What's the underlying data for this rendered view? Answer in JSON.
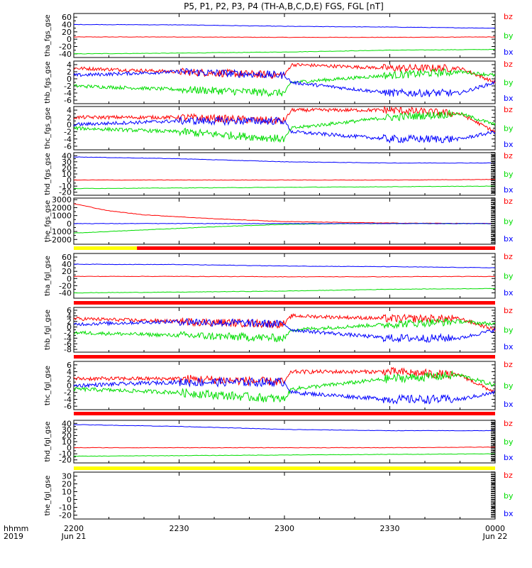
{
  "title": "P5, P1, P2, P3, P4 (TH-A,B,C,D,E) FGS, FGL [nT]",
  "time_axis": {
    "label_line1": "hhmm",
    "label_line2": "2019",
    "ticks": [
      {
        "t": 0,
        "label": "2200",
        "sub": "Jun 21"
      },
      {
        "t": 30,
        "label": "2230",
        "sub": ""
      },
      {
        "t": 60,
        "label": "2300",
        "sub": ""
      },
      {
        "t": 90,
        "label": "2330",
        "sub": ""
      },
      {
        "t": 120,
        "label": "0000",
        "sub": "Jun 22"
      }
    ],
    "range_minutes": [
      0,
      120
    ]
  },
  "colors": {
    "bx": "#0000ff",
    "by": "#00dd00",
    "bz": "#ff0000",
    "yellow": "#ffff00",
    "red_bar": "#ff0000"
  },
  "chart_data": [
    {
      "type": "line",
      "ylabel": "tha_fgs_gse",
      "ylim": [
        -50,
        70
      ],
      "yticks": [
        "60",
        "40",
        "20",
        "0",
        "-20",
        "-40"
      ],
      "ytick_values": [
        60,
        40,
        20,
        0,
        -20,
        -40
      ],
      "legend": [
        "bz",
        "by",
        "bx"
      ],
      "series": [
        {
          "name": "bz",
          "x": [
            0,
            30,
            60,
            90,
            120
          ],
          "values": [
            6,
            6,
            5,
            5,
            6
          ]
        },
        {
          "name": "by",
          "x": [
            0,
            30,
            60,
            90,
            120
          ],
          "values": [
            -40,
            -38,
            -35,
            -30,
            -28
          ]
        },
        {
          "name": "bx",
          "x": [
            0,
            30,
            60,
            90,
            120
          ],
          "values": [
            40,
            39,
            35,
            33,
            30
          ]
        }
      ],
      "bar": null
    },
    {
      "type": "line",
      "ylabel": "thb_fgs_gse",
      "ylim": [
        -7,
        5
      ],
      "yticks": [
        "4",
        "2",
        "0",
        "-2",
        "-4",
        "-6"
      ],
      "ytick_values": [
        4,
        2,
        0,
        -2,
        -4,
        -6
      ],
      "legend": [
        "bz",
        "by",
        "bx"
      ],
      "series": [
        {
          "name": "bz",
          "x": [
            0,
            30,
            60,
            62,
            90,
            110,
            120
          ],
          "values": [
            3,
            2,
            1,
            4,
            3,
            3,
            -1
          ]
        },
        {
          "name": "by",
          "x": [
            0,
            30,
            60,
            62,
            90,
            110,
            120
          ],
          "values": [
            -2,
            -3,
            -4,
            -1,
            1,
            2,
            1
          ]
        },
        {
          "name": "bx",
          "x": [
            0,
            30,
            60,
            62,
            90,
            110,
            120
          ],
          "values": [
            1,
            2,
            1,
            -1,
            -4,
            -4,
            -1
          ]
        }
      ],
      "bar": null
    },
    {
      "type": "line",
      "ylabel": "thc_fgs_gse",
      "ylim": [
        -7,
        5
      ],
      "yticks": [
        "4",
        "2",
        "0",
        "-2",
        "-4",
        "-6"
      ],
      "ytick_values": [
        4,
        2,
        0,
        -2,
        -4,
        -6
      ],
      "legend": [
        "bz",
        "by",
        "bx"
      ],
      "series": [
        {
          "name": "bz",
          "x": [
            0,
            30,
            60,
            62,
            90,
            110,
            120
          ],
          "values": [
            2,
            2,
            1,
            4,
            4,
            3,
            -2
          ]
        },
        {
          "name": "by",
          "x": [
            0,
            30,
            60,
            62,
            90,
            110,
            120
          ],
          "values": [
            -1,
            -2,
            -4,
            -1,
            2,
            3,
            0
          ]
        },
        {
          "name": "bx",
          "x": [
            0,
            30,
            60,
            62,
            90,
            110,
            120
          ],
          "values": [
            0,
            1,
            1,
            -2,
            -4,
            -4,
            -2
          ]
        }
      ],
      "bar": null
    },
    {
      "type": "line",
      "ylabel": "thd_fgs_gse",
      "ylim": [
        -25,
        45
      ],
      "yticks": [
        "40",
        "30",
        "20",
        "10",
        "0",
        "-10",
        "-20"
      ],
      "ytick_values": [
        40,
        30,
        20,
        10,
        0,
        -10,
        -20
      ],
      "legend": [
        "bz",
        "by",
        "bx"
      ],
      "series": [
        {
          "name": "bz",
          "x": [
            0,
            30,
            60,
            90,
            120
          ],
          "values": [
            0,
            0,
            0,
            0,
            1
          ]
        },
        {
          "name": "by",
          "x": [
            0,
            30,
            60,
            90,
            120
          ],
          "values": [
            -14,
            -13,
            -12,
            -11,
            -10
          ]
        },
        {
          "name": "bx",
          "x": [
            0,
            30,
            60,
            90,
            120
          ],
          "values": [
            38,
            35,
            30,
            28,
            28
          ]
        }
      ],
      "bar": null
    },
    {
      "type": "line",
      "ylabel": "the_fgs_gse",
      "ylim": [
        -2600,
        3200
      ],
      "yticks": [
        "3000",
        "2000",
        "1000",
        "0",
        "-1000",
        "-2000"
      ],
      "ytick_values": [
        3000,
        2000,
        1000,
        0,
        -1000,
        -2000
      ],
      "legend": [
        "bz",
        "by",
        "bx"
      ],
      "series": [
        {
          "name": "bz",
          "x": [
            0,
            10,
            20,
            40,
            60,
            90,
            120
          ],
          "values": [
            2500,
            1600,
            1100,
            600,
            250,
            60,
            0
          ]
        },
        {
          "name": "by",
          "x": [
            0,
            20,
            40,
            60,
            80,
            120
          ],
          "values": [
            -1200,
            -800,
            -400,
            -100,
            0,
            0
          ]
        },
        {
          "name": "bx",
          "x": [
            0,
            30,
            60,
            120
          ],
          "values": [
            0,
            0,
            0,
            0
          ]
        }
      ],
      "bar": {
        "segments": [
          {
            "from": 0,
            "to": 18,
            "color": "yellow"
          },
          {
            "from": 18,
            "to": 120,
            "color": "red_bar"
          }
        ]
      }
    },
    {
      "type": "line",
      "ylabel": "tha_fgl_gse",
      "ylim": [
        -55,
        70
      ],
      "yticks": [
        "60",
        "40",
        "20",
        "0",
        "-20",
        "-40"
      ],
      "ytick_values": [
        60,
        40,
        20,
        0,
        -20,
        -40
      ],
      "legend": [
        "bz",
        "by",
        "bx"
      ],
      "series": [
        {
          "name": "bz",
          "x": [
            0,
            30,
            60,
            90,
            120
          ],
          "values": [
            6,
            6,
            5,
            5,
            6
          ]
        },
        {
          "name": "by",
          "x": [
            0,
            30,
            60,
            90,
            120
          ],
          "values": [
            -40,
            -38,
            -35,
            -30,
            -28
          ]
        },
        {
          "name": "bx",
          "x": [
            0,
            30,
            60,
            90,
            120
          ],
          "values": [
            40,
            39,
            35,
            33,
            30
          ]
        }
      ],
      "bar": {
        "segments": [
          {
            "from": 0,
            "to": 120,
            "color": "red_bar"
          }
        ]
      }
    },
    {
      "type": "line",
      "ylabel": "thb_fgl_gse",
      "ylim": [
        -9,
        7
      ],
      "yticks": [
        "6",
        "4",
        "2",
        "0",
        "-2",
        "-4",
        "-6",
        "-8"
      ],
      "ytick_values": [
        6,
        4,
        2,
        0,
        -2,
        -4,
        -6,
        -8
      ],
      "legend": [
        "bz",
        "by",
        "bx"
      ],
      "series": [
        {
          "name": "bz",
          "x": [
            0,
            30,
            60,
            62,
            90,
            110,
            120
          ],
          "values": [
            3,
            2,
            1,
            4,
            3,
            3,
            -1
          ]
        },
        {
          "name": "by",
          "x": [
            0,
            30,
            60,
            62,
            90,
            110,
            120
          ],
          "values": [
            -2,
            -3,
            -4,
            -1,
            1,
            2,
            1
          ]
        },
        {
          "name": "bx",
          "x": [
            0,
            30,
            60,
            62,
            90,
            110,
            120
          ],
          "values": [
            1,
            2,
            1,
            -1,
            -4,
            -4,
            -1
          ]
        }
      ],
      "bar": {
        "segments": [
          {
            "from": 0,
            "to": 120,
            "color": "red_bar"
          }
        ]
      }
    },
    {
      "type": "line",
      "ylabel": "thc_fgl_gse",
      "ylim": [
        -7,
        7
      ],
      "yticks": [
        "6",
        "4",
        "2",
        "0",
        "-2",
        "-4",
        "-6"
      ],
      "ytick_values": [
        6,
        4,
        2,
        0,
        -2,
        -4,
        -6
      ],
      "legend": [
        "bz",
        "by",
        "bx"
      ],
      "series": [
        {
          "name": "bz",
          "x": [
            0,
            30,
            60,
            62,
            90,
            110,
            120
          ],
          "values": [
            2,
            2,
            1,
            4,
            4,
            3,
            -2
          ]
        },
        {
          "name": "by",
          "x": [
            0,
            30,
            60,
            62,
            90,
            110,
            120
          ],
          "values": [
            -1,
            -2,
            -4,
            -1,
            2,
            3,
            0
          ]
        },
        {
          "name": "bx",
          "x": [
            0,
            30,
            60,
            62,
            90,
            110,
            120
          ],
          "values": [
            0,
            1,
            1,
            -2,
            -4,
            -4,
            -2
          ]
        }
      ],
      "bar": {
        "segments": [
          {
            "from": 0,
            "to": 120,
            "color": "red_bar"
          }
        ]
      }
    },
    {
      "type": "line",
      "ylabel": "thd_fgl_gse",
      "ylim": [
        -25,
        45
      ],
      "yticks": [
        "40",
        "30",
        "20",
        "10",
        "0",
        "-10",
        "-20"
      ],
      "ytick_values": [
        40,
        30,
        20,
        10,
        0,
        -10,
        -20
      ],
      "legend": [
        "bz",
        "by",
        "bx"
      ],
      "series": [
        {
          "name": "bz",
          "x": [
            0,
            30,
            60,
            90,
            120
          ],
          "values": [
            0,
            0,
            0,
            0,
            1
          ]
        },
        {
          "name": "by",
          "x": [
            0,
            30,
            60,
            90,
            120
          ],
          "values": [
            -14,
            -13,
            -12,
            -11,
            -10
          ]
        },
        {
          "name": "bx",
          "x": [
            0,
            30,
            60,
            90,
            120
          ],
          "values": [
            38,
            35,
            30,
            28,
            28
          ]
        }
      ],
      "bar": {
        "segments": [
          {
            "from": 0,
            "to": 120,
            "color": "yellow"
          }
        ]
      }
    },
    {
      "type": "line",
      "ylabel": "the_fgl_gse",
      "ylim": [
        -25,
        35
      ],
      "yticks": [
        "30",
        "20",
        "10",
        "0",
        "-10",
        "-20"
      ],
      "ytick_values": [
        30,
        20,
        10,
        0,
        -10,
        -20
      ],
      "legend": [
        "bz",
        "by",
        "bx"
      ],
      "series": [],
      "bar": null
    }
  ]
}
